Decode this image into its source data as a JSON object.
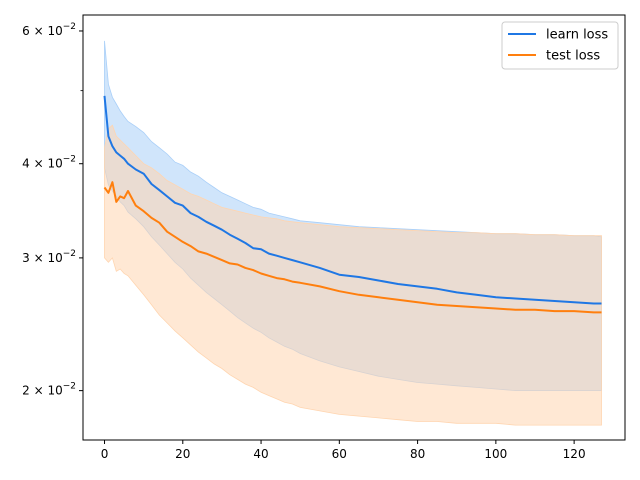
{
  "chart_data": {
    "type": "line",
    "title": "",
    "xlabel": "",
    "ylabel": "",
    "yscale": "log",
    "xlim": [
      -5.5,
      133
    ],
    "ylim": [
      0.0172,
      0.063
    ],
    "grid": false,
    "legend_placement": "top-right",
    "x_ticks": [
      0,
      20,
      40,
      60,
      80,
      100,
      120
    ],
    "x_tick_labels": [
      "0",
      "20",
      "40",
      "60",
      "80",
      "100",
      "120"
    ],
    "y_ticks": [
      0.02,
      0.03,
      0.04,
      0.06
    ],
    "y_tick_labels": [
      {
        "mantissa": "2",
        "exponent": "−2"
      },
      {
        "mantissa": "3",
        "exponent": "−2"
      },
      {
        "mantissa": "4",
        "exponent": "−2"
      },
      {
        "mantissa": "6",
        "exponent": "−2"
      }
    ],
    "y_minor_ticks": [
      0.05
    ],
    "series": [
      {
        "name": "learn loss",
        "color": "#1f77e4",
        "band_color": "#a9cff8",
        "x": [
          0,
          1,
          2,
          3,
          4,
          5,
          6,
          8,
          10,
          12,
          14,
          16,
          18,
          20,
          22,
          24,
          26,
          28,
          30,
          32,
          34,
          36,
          38,
          40,
          42,
          44,
          46,
          48,
          50,
          55,
          60,
          65,
          70,
          75,
          80,
          85,
          90,
          95,
          100,
          105,
          110,
          115,
          120,
          125,
          127
        ],
        "mean": [
          0.0492,
          0.0435,
          0.0422,
          0.0414,
          0.041,
          0.0406,
          0.04,
          0.0393,
          0.0388,
          0.0376,
          0.0369,
          0.0362,
          0.0355,
          0.0352,
          0.0344,
          0.034,
          0.0335,
          0.0331,
          0.0327,
          0.0322,
          0.0318,
          0.0314,
          0.0309,
          0.0308,
          0.0304,
          0.0302,
          0.03,
          0.0298,
          0.0296,
          0.0291,
          0.0285,
          0.0283,
          0.028,
          0.0277,
          0.0275,
          0.0273,
          0.027,
          0.0268,
          0.0266,
          0.0265,
          0.0264,
          0.0263,
          0.0262,
          0.0261,
          0.0261
        ],
        "upper": [
          0.0582,
          0.051,
          0.049,
          0.048,
          0.047,
          0.0462,
          0.0455,
          0.0448,
          0.044,
          0.0428,
          0.042,
          0.0412,
          0.0402,
          0.0398,
          0.039,
          0.0385,
          0.0378,
          0.0372,
          0.0366,
          0.0362,
          0.0358,
          0.0354,
          0.035,
          0.0348,
          0.0344,
          0.0342,
          0.034,
          0.0338,
          0.0336,
          0.0334,
          0.0332,
          0.033,
          0.0329,
          0.0328,
          0.0327,
          0.0326,
          0.0325,
          0.0324,
          0.0323,
          0.0323,
          0.0322,
          0.0322,
          0.0321,
          0.0321,
          0.032
        ],
        "lower": [
          0.0395,
          0.0375,
          0.0368,
          0.0362,
          0.0356,
          0.0352,
          0.0345,
          0.0338,
          0.033,
          0.032,
          0.0312,
          0.0304,
          0.0296,
          0.029,
          0.0282,
          0.0276,
          0.027,
          0.0265,
          0.026,
          0.0255,
          0.025,
          0.0246,
          0.0242,
          0.0239,
          0.0235,
          0.0232,
          0.0229,
          0.0227,
          0.0224,
          0.0219,
          0.0215,
          0.0212,
          0.0209,
          0.0207,
          0.0205,
          0.0204,
          0.0203,
          0.0202,
          0.0201,
          0.02,
          0.02,
          0.02,
          0.02,
          0.02,
          0.02
        ]
      },
      {
        "name": "test loss",
        "color": "#ff7f0e",
        "band_color": "#ffd5b0",
        "x": [
          0,
          1,
          2,
          3,
          4,
          5,
          6,
          8,
          10,
          12,
          14,
          16,
          18,
          20,
          22,
          24,
          26,
          28,
          30,
          32,
          34,
          36,
          38,
          40,
          42,
          44,
          46,
          48,
          50,
          55,
          60,
          65,
          70,
          75,
          80,
          85,
          90,
          95,
          100,
          105,
          110,
          115,
          120,
          125,
          127
        ],
        "mean": [
          0.0372,
          0.0366,
          0.0378,
          0.0356,
          0.0362,
          0.036,
          0.0368,
          0.0352,
          0.0346,
          0.0339,
          0.0334,
          0.0325,
          0.032,
          0.0315,
          0.0311,
          0.0306,
          0.0304,
          0.0301,
          0.0298,
          0.0295,
          0.0294,
          0.0291,
          0.0289,
          0.0286,
          0.0284,
          0.0282,
          0.0281,
          0.0279,
          0.0278,
          0.0275,
          0.0271,
          0.0268,
          0.0266,
          0.0264,
          0.0262,
          0.026,
          0.0259,
          0.0258,
          0.0257,
          0.0256,
          0.0256,
          0.0255,
          0.0255,
          0.0254,
          0.0254
        ],
        "upper": [
          0.042,
          0.0445,
          0.045,
          0.0435,
          0.043,
          0.0425,
          0.042,
          0.041,
          0.04,
          0.0395,
          0.0388,
          0.038,
          0.0375,
          0.037,
          0.0365,
          0.0362,
          0.0358,
          0.0354,
          0.035,
          0.0348,
          0.0346,
          0.0344,
          0.0342,
          0.034,
          0.0339,
          0.0338,
          0.0336,
          0.0335,
          0.0334,
          0.0332,
          0.033,
          0.0329,
          0.0328,
          0.0327,
          0.0326,
          0.0325,
          0.0324,
          0.0324,
          0.0323,
          0.0323,
          0.0322,
          0.0322,
          0.0321,
          0.0321,
          0.0321
        ],
        "lower": [
          0.03,
          0.0296,
          0.03,
          0.0288,
          0.029,
          0.0286,
          0.0284,
          0.0276,
          0.0268,
          0.026,
          0.0252,
          0.0246,
          0.024,
          0.0235,
          0.023,
          0.0225,
          0.0221,
          0.0217,
          0.0214,
          0.021,
          0.0207,
          0.0204,
          0.0202,
          0.0199,
          0.0197,
          0.0195,
          0.0193,
          0.0192,
          0.019,
          0.0188,
          0.0186,
          0.0185,
          0.0184,
          0.0183,
          0.0182,
          0.0182,
          0.0181,
          0.0181,
          0.0181,
          0.018,
          0.018,
          0.018,
          0.018,
          0.018,
          0.018
        ]
      }
    ]
  }
}
